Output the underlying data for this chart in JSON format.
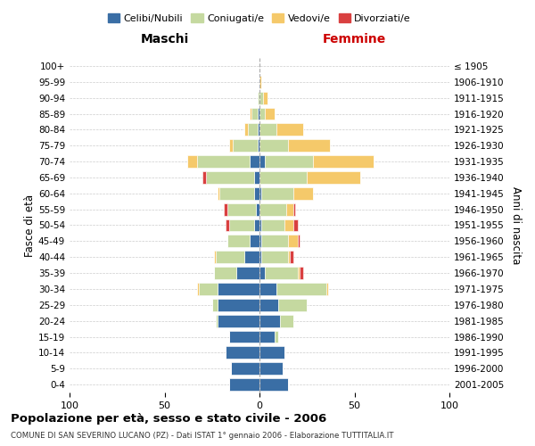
{
  "age_groups": [
    "0-4",
    "5-9",
    "10-14",
    "15-19",
    "20-24",
    "25-29",
    "30-34",
    "35-39",
    "40-44",
    "45-49",
    "50-54",
    "55-59",
    "60-64",
    "65-69",
    "70-74",
    "75-79",
    "80-84",
    "85-89",
    "90-94",
    "95-99",
    "100+"
  ],
  "birth_years": [
    "2001-2005",
    "1996-2000",
    "1991-1995",
    "1986-1990",
    "1981-1985",
    "1976-1980",
    "1971-1975",
    "1966-1970",
    "1961-1965",
    "1956-1960",
    "1951-1955",
    "1946-1950",
    "1941-1945",
    "1936-1940",
    "1931-1935",
    "1926-1930",
    "1921-1925",
    "1916-1920",
    "1911-1915",
    "1906-1910",
    "≤ 1905"
  ],
  "male": {
    "celibi": [
      16,
      15,
      18,
      16,
      22,
      22,
      22,
      12,
      8,
      5,
      3,
      2,
      3,
      3,
      5,
      1,
      1,
      1,
      0,
      0,
      0
    ],
    "coniugati": [
      0,
      0,
      0,
      0,
      1,
      3,
      10,
      12,
      15,
      12,
      13,
      15,
      18,
      25,
      28,
      13,
      5,
      3,
      1,
      0,
      0
    ],
    "vedovi": [
      0,
      0,
      0,
      0,
      0,
      0,
      1,
      0,
      1,
      0,
      0,
      0,
      1,
      0,
      5,
      2,
      2,
      1,
      0,
      0,
      0
    ],
    "divorziati": [
      0,
      0,
      0,
      0,
      0,
      0,
      0,
      0,
      0,
      0,
      2,
      2,
      0,
      2,
      0,
      0,
      0,
      0,
      0,
      0,
      0
    ]
  },
  "female": {
    "nubili": [
      15,
      12,
      13,
      8,
      11,
      10,
      9,
      3,
      1,
      1,
      1,
      0,
      1,
      0,
      3,
      0,
      0,
      0,
      0,
      0,
      0
    ],
    "coniugate": [
      0,
      0,
      0,
      2,
      7,
      15,
      26,
      17,
      14,
      14,
      12,
      14,
      17,
      25,
      25,
      15,
      9,
      3,
      2,
      0,
      0
    ],
    "vedove": [
      0,
      0,
      0,
      0,
      0,
      0,
      1,
      1,
      1,
      5,
      5,
      4,
      10,
      28,
      32,
      22,
      14,
      5,
      2,
      1,
      0
    ],
    "divorziate": [
      0,
      0,
      0,
      0,
      0,
      0,
      0,
      2,
      2,
      1,
      2,
      1,
      0,
      0,
      0,
      0,
      0,
      0,
      0,
      0,
      0
    ]
  },
  "colors": {
    "celibi": "#3A6EA5",
    "coniugati": "#C5D9A0",
    "vedovi": "#F5C96A",
    "divorziati": "#D94040"
  },
  "title": "Popolazione per età, sesso e stato civile - 2006",
  "subtitle": "COMUNE DI SAN SEVERINO LUCANO (PZ) - Dati ISTAT 1° gennaio 2006 - Elaborazione TUTTITALIA.IT",
  "ylabel_left": "Fasce di età",
  "ylabel_right": "Anni di nascita",
  "xlabel_left": "Maschi",
  "xlabel_right": "Femmine",
  "xlim": 100,
  "background": "#ffffff",
  "grid_color": "#cccccc",
  "legend_labels": [
    "Celibi/Nubili",
    "Coniugati/e",
    "Vedovi/e",
    "Divorziati/e"
  ]
}
